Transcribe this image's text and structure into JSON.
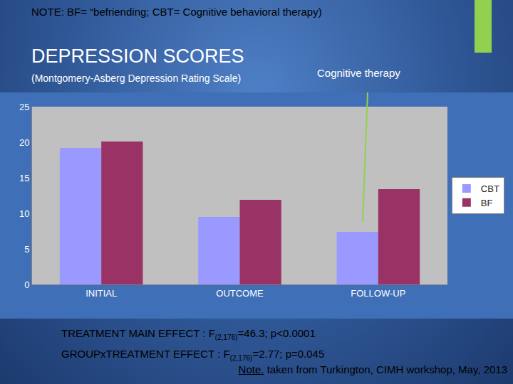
{
  "chart_data": {
    "type": "bar",
    "note": "NOTE: BF= “befriending; CBT= Cognitive behavioral therapy)",
    "title": "DEPRESSION SCORES",
    "subtitle": "(Montgomery-Asberg Depression Rating Scale)",
    "annotations": [
      {
        "text": "Cognitive therapy"
      }
    ],
    "categories": [
      "INITIAL",
      "OUTCOME",
      "FOLLOW-UP"
    ],
    "series": [
      {
        "name": "CBT",
        "color": "#9999ff",
        "values": [
          19.2,
          9.5,
          7.4
        ]
      },
      {
        "name": "BF",
        "color": "#993366",
        "values": [
          20.1,
          11.9,
          13.4
        ]
      }
    ],
    "ylim": [
      0,
      25
    ],
    "yticks": [
      0,
      5,
      10,
      15,
      20,
      25
    ],
    "grid": false,
    "legend": "right",
    "statistics": [
      {
        "prefix": "TREATMENT MAIN EFFECT : F",
        "subscript": "(2,176)",
        "suffix": "=46.3; p<0.0001"
      },
      {
        "prefix": "GROUPxTREATMENT EFFECT : F",
        "subscript": "(2,176)",
        "suffix": "=2.77; p=0.045"
      }
    ],
    "source": {
      "underlined": "Note.",
      "text": " taken from Turkington, CIMH workshop, May, 2013"
    }
  }
}
